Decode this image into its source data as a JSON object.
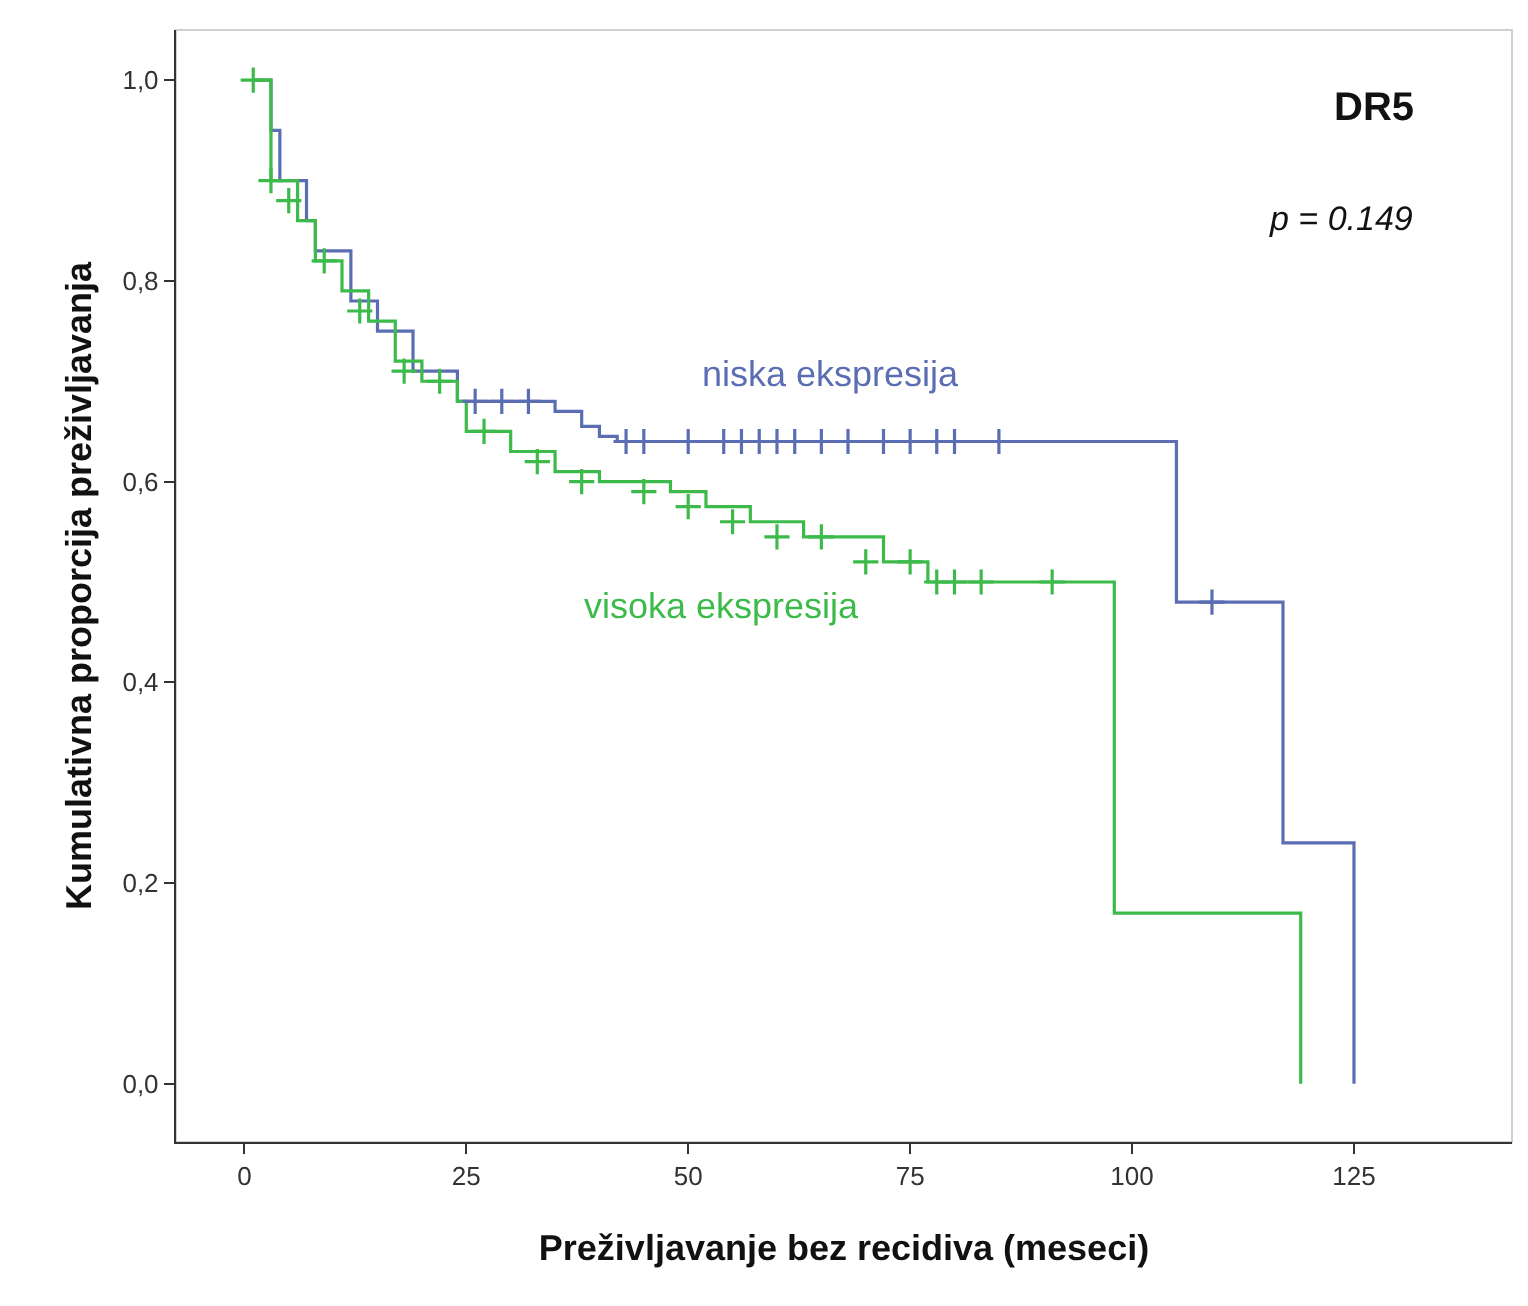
{
  "chart_data": {
    "type": "step",
    "xlabel": "Preživljavanje bez recidiva (meseci)",
    "ylabel": "Kumulativna proporcija preživljavanja",
    "xlim": [
      -7.7,
      142.8
    ],
    "ylim": [
      -0.058,
      1.05
    ],
    "xticks": [
      0,
      25,
      50,
      75,
      100,
      125
    ],
    "yticks": [
      {
        "value": 0,
        "label": "0,0"
      },
      {
        "value": 0.2,
        "label": "0,2"
      },
      {
        "value": 0.4,
        "label": "0,4"
      },
      {
        "value": 0.6,
        "label": "0,6"
      },
      {
        "value": 0.8,
        "label": "0,8"
      },
      {
        "value": 1.0,
        "label": "1,0"
      }
    ],
    "grid": false,
    "legend": false,
    "series": [
      {
        "name": "niska ekspresija",
        "marker": "none",
        "color": "#5b6db3",
        "x": [
          1,
          3,
          4,
          7,
          8,
          12,
          15,
          19,
          24,
          35,
          38,
          40,
          42,
          105,
          117,
          125,
          125
        ],
        "values": [
          1.0,
          0.95,
          0.9,
          0.86,
          0.83,
          0.78,
          0.75,
          0.71,
          0.68,
          0.67,
          0.655,
          0.645,
          0.64,
          0.48,
          0.24,
          0.0,
          0.0
        ]
      },
      {
        "name": "visoka ekspresija",
        "marker": "none",
        "color": "#3dbb4a",
        "x": [
          1,
          3,
          6,
          8,
          11,
          14,
          17,
          20,
          24,
          25,
          30,
          35,
          40,
          48,
          52,
          57,
          63,
          72,
          77,
          98,
          119,
          119
        ],
        "values": [
          1.0,
          0.9,
          0.86,
          0.82,
          0.79,
          0.76,
          0.72,
          0.7,
          0.68,
          0.65,
          0.63,
          0.61,
          0.6,
          0.59,
          0.575,
          0.56,
          0.545,
          0.52,
          0.5,
          0.17,
          0.0,
          0.0
        ]
      },
      {
        "type": "scatter",
        "marker": "cross",
        "color": "#5b6db3",
        "x": [
          26,
          29,
          32,
          43,
          45,
          50,
          54,
          56,
          58,
          60,
          62,
          65,
          68,
          72,
          75,
          78,
          80,
          85,
          109
        ],
        "values": [
          0.68,
          0.68,
          0.68,
          0.64,
          0.64,
          0.64,
          0.64,
          0.64,
          0.64,
          0.64,
          0.64,
          0.64,
          0.64,
          0.64,
          0.64,
          0.64,
          0.64,
          0.64,
          0.48
        ]
      },
      {
        "type": "scatter",
        "marker": "cross",
        "color": "#3dbb4a",
        "x": [
          1,
          3,
          5,
          9,
          13,
          18,
          22,
          27,
          33,
          38,
          45,
          50,
          55,
          60,
          65,
          70,
          75,
          78,
          80,
          83,
          91
        ],
        "values": [
          1.0,
          0.9,
          0.88,
          0.82,
          0.77,
          0.71,
          0.7,
          0.65,
          0.62,
          0.6,
          0.59,
          0.575,
          0.56,
          0.545,
          0.545,
          0.52,
          0.52,
          0.5,
          0.5,
          0.5,
          0.5
        ]
      }
    ],
    "annotations": [
      "DR5",
      "p = 0.149"
    ]
  }
}
